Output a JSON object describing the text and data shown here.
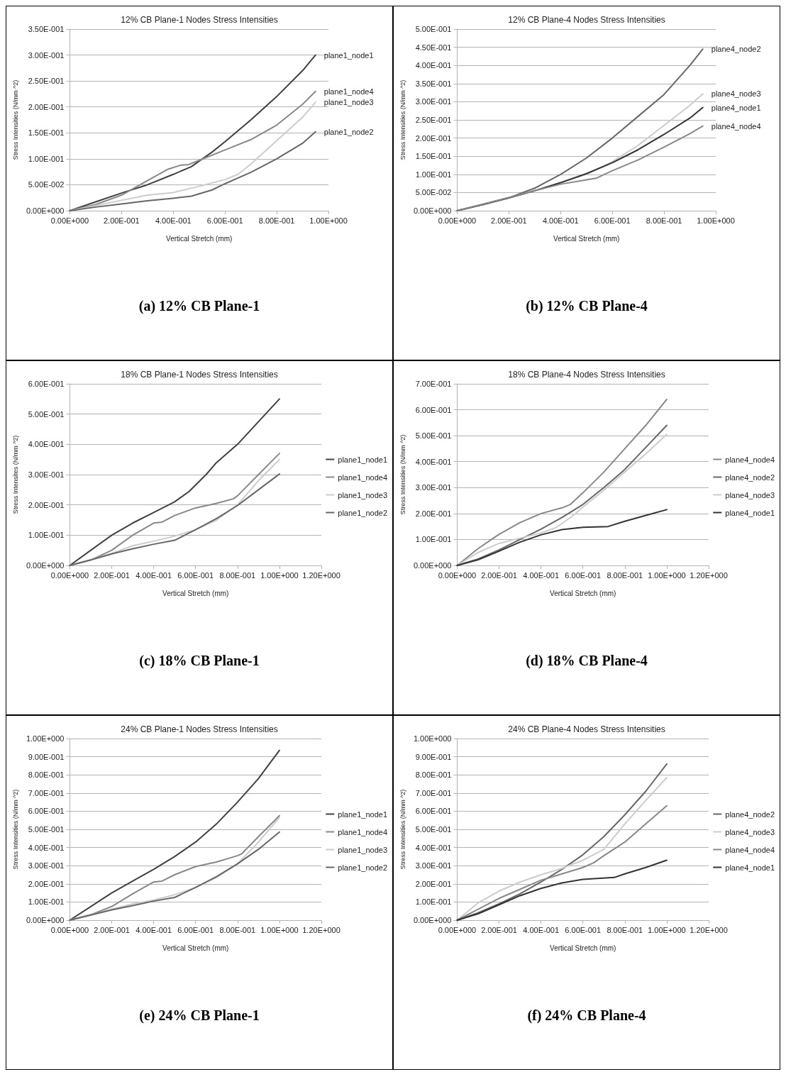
{
  "chart_data": [
    {
      "type": "line",
      "title": "12% CB Plane-1 Nodes Stress Intensities",
      "xlabel": "Vertical Stretch (mm)",
      "ylabel": "Stress Intensities (N/mm ^2)",
      "annotations": [
        "(a) 12% CB Plane-1"
      ],
      "legend": false,
      "grid": "y",
      "xlim": [
        0,
        1
      ],
      "xticks": [
        {
          "value": 0,
          "label": "0.00E+000"
        },
        {
          "value": 0.2,
          "label": "2.00E-001"
        },
        {
          "value": 0.4,
          "label": "4.00E-001"
        },
        {
          "value": 0.6,
          "label": "6.00E-001"
        },
        {
          "value": 0.8,
          "label": "8.00E-001"
        },
        {
          "value": 1,
          "label": "1.00E+000"
        }
      ],
      "ylim": [
        0,
        0.35
      ],
      "yticks": [
        {
          "value": 0,
          "label": "0.00E+000"
        },
        {
          "value": 0.05,
          "label": "5.00E-002"
        },
        {
          "value": 0.1,
          "label": "1.00E-001"
        },
        {
          "value": 0.15,
          "label": "1.50E-001"
        },
        {
          "value": 0.2,
          "label": "2.00E-001"
        },
        {
          "value": 0.25,
          "label": "2.50E-001"
        },
        {
          "value": 0.3,
          "label": "3.00E-001"
        },
        {
          "value": 0.35,
          "label": "3.50E-001"
        }
      ],
      "series": [
        {
          "name": "plane1_node1",
          "color": "#404040",
          "x": [
            0,
            0.1,
            0.2,
            0.3,
            0.4,
            0.47,
            0.55,
            0.6,
            0.7,
            0.8,
            0.9,
            0.95
          ],
          "values": [
            0,
            0.017,
            0.034,
            0.05,
            0.07,
            0.085,
            0.113,
            0.133,
            0.175,
            0.22,
            0.27,
            0.3
          ]
        },
        {
          "name": "plane1_node4",
          "color": "#888888",
          "x": [
            0,
            0.1,
            0.2,
            0.3,
            0.38,
            0.43,
            0.46,
            0.5,
            0.6,
            0.7,
            0.8,
            0.9,
            0.95
          ],
          "values": [
            0,
            0.012,
            0.03,
            0.058,
            0.08,
            0.088,
            0.089,
            0.097,
            0.117,
            0.137,
            0.165,
            0.205,
            0.23
          ]
        },
        {
          "name": "plane1_node3",
          "color": "#cccccc",
          "x": [
            0,
            0.1,
            0.2,
            0.3,
            0.4,
            0.5,
            0.6,
            0.65,
            0.7,
            0.8,
            0.9,
            0.95
          ],
          "values": [
            0,
            0.01,
            0.02,
            0.03,
            0.035,
            0.047,
            0.06,
            0.07,
            0.09,
            0.135,
            0.18,
            0.209
          ]
        },
        {
          "name": "plane1_node2",
          "color": "#666666",
          "x": [
            0,
            0.1,
            0.2,
            0.3,
            0.4,
            0.47,
            0.55,
            0.6,
            0.7,
            0.8,
            0.9,
            0.95
          ],
          "values": [
            0,
            0.007,
            0.013,
            0.019,
            0.024,
            0.028,
            0.04,
            0.052,
            0.074,
            0.1,
            0.13,
            0.152
          ]
        }
      ]
    },
    {
      "type": "line",
      "title": "12% CB Plane-4 Nodes Stress Intensities",
      "xlabel": "Vertical Stretch (mm)",
      "ylabel": "Stress Intensities (N/mm ^2)",
      "annotations": [
        "(b) 12% CB Plane-4"
      ],
      "legend": false,
      "grid": "y",
      "xlim": [
        0,
        1
      ],
      "xticks": [
        {
          "value": 0,
          "label": "0.00E+000"
        },
        {
          "value": 0.2,
          "label": "2.00E-001"
        },
        {
          "value": 0.4,
          "label": "4.00E-001"
        },
        {
          "value": 0.6,
          "label": "6.00E-001"
        },
        {
          "value": 0.8,
          "label": "8.00E-001"
        },
        {
          "value": 1,
          "label": "1.00E+000"
        }
      ],
      "ylim": [
        0,
        0.5
      ],
      "yticks": [
        {
          "value": 0,
          "label": "0.00E+000"
        },
        {
          "value": 0.05,
          "label": "5.00E-002"
        },
        {
          "value": 0.1,
          "label": "1.00E-001"
        },
        {
          "value": 0.15,
          "label": "1.50E-001"
        },
        {
          "value": 0.2,
          "label": "2.00E-001"
        },
        {
          "value": 0.25,
          "label": "2.50E-001"
        },
        {
          "value": 0.3,
          "label": "3.00E-001"
        },
        {
          "value": 0.35,
          "label": "3.50E-001"
        },
        {
          "value": 0.4,
          "label": "4.00E-001"
        },
        {
          "value": 0.45,
          "label": "4.50E-001"
        },
        {
          "value": 0.5,
          "label": "5.00E-001"
        }
      ],
      "series": [
        {
          "name": "plane4_node2",
          "color": "#666666",
          "x": [
            0,
            0.1,
            0.2,
            0.3,
            0.4,
            0.5,
            0.6,
            0.7,
            0.8,
            0.9,
            0.95
          ],
          "values": [
            0,
            0.017,
            0.036,
            0.062,
            0.1,
            0.145,
            0.2,
            0.26,
            0.32,
            0.4,
            0.445
          ]
        },
        {
          "name": "plane4_node3",
          "color": "#cccccc",
          "x": [
            0,
            0.1,
            0.2,
            0.3,
            0.4,
            0.5,
            0.6,
            0.7,
            0.8,
            0.9,
            0.95
          ],
          "values": [
            0,
            0.018,
            0.036,
            0.055,
            0.078,
            0.1,
            0.135,
            0.18,
            0.235,
            0.29,
            0.322
          ]
        },
        {
          "name": "plane4_node1",
          "color": "#333333",
          "x": [
            0,
            0.1,
            0.2,
            0.3,
            0.4,
            0.5,
            0.6,
            0.7,
            0.8,
            0.9,
            0.95
          ],
          "values": [
            0,
            0.017,
            0.035,
            0.055,
            0.077,
            0.102,
            0.132,
            0.168,
            0.21,
            0.255,
            0.284
          ]
        },
        {
          "name": "plane4_node4",
          "color": "#888888",
          "x": [
            0,
            0.1,
            0.2,
            0.3,
            0.4,
            0.5,
            0.54,
            0.6,
            0.7,
            0.8,
            0.9,
            0.95
          ],
          "values": [
            0,
            0.018,
            0.036,
            0.055,
            0.073,
            0.085,
            0.09,
            0.11,
            0.14,
            0.175,
            0.212,
            0.233
          ]
        }
      ]
    },
    {
      "type": "line",
      "title": "18% CB Plane-1 Nodes Stress Intensities",
      "xlabel": "Vertical Stretch (mm)",
      "ylabel": "Stress Intensites (N/mm ^2)",
      "annotations": [
        "(c) 18% CB Plane-1"
      ],
      "legend": "right",
      "grid": "y",
      "xlim": [
        0,
        1.2
      ],
      "xticks": [
        {
          "value": 0,
          "label": "0.00E+000"
        },
        {
          "value": 0.2,
          "label": "2.00E-001"
        },
        {
          "value": 0.4,
          "label": "4.00E-001"
        },
        {
          "value": 0.6,
          "label": "6.00E-001"
        },
        {
          "value": 0.8,
          "label": "8.00E-001"
        },
        {
          "value": 1,
          "label": "1.00E+000"
        },
        {
          "value": 1.2,
          "label": "1.20E+000"
        }
      ],
      "ylim": [
        0,
        0.6
      ],
      "yticks": [
        {
          "value": 0,
          "label": "0.00E+000"
        },
        {
          "value": 0.1,
          "label": "1.00E-001"
        },
        {
          "value": 0.2,
          "label": "2.00E-001"
        },
        {
          "value": 0.3,
          "label": "3.00E-001"
        },
        {
          "value": 0.4,
          "label": "4.00E-001"
        },
        {
          "value": 0.5,
          "label": "5.00E-001"
        },
        {
          "value": 0.6,
          "label": "6.00E-001"
        }
      ],
      "series": [
        {
          "name": "plane1_node1",
          "color": "#404040",
          "x": [
            0,
            0.1,
            0.2,
            0.3,
            0.4,
            0.5,
            0.57,
            0.65,
            0.7,
            0.8,
            0.9,
            1
          ],
          "values": [
            0,
            0.05,
            0.1,
            0.14,
            0.175,
            0.21,
            0.245,
            0.3,
            0.34,
            0.4,
            0.475,
            0.55
          ]
        },
        {
          "name": "plane1_node4",
          "color": "#888888",
          "x": [
            0,
            0.1,
            0.2,
            0.3,
            0.4,
            0.44,
            0.5,
            0.6,
            0.7,
            0.78,
            0.8,
            0.9,
            1
          ],
          "values": [
            0,
            0.018,
            0.05,
            0.1,
            0.14,
            0.143,
            0.165,
            0.19,
            0.205,
            0.22,
            0.23,
            0.3,
            0.37
          ]
        },
        {
          "name": "plane1_node3",
          "color": "#cccccc",
          "x": [
            0,
            0.1,
            0.2,
            0.3,
            0.4,
            0.5,
            0.6,
            0.7,
            0.8,
            0.9,
            1
          ],
          "values": [
            0,
            0.018,
            0.04,
            0.065,
            0.08,
            0.097,
            0.118,
            0.15,
            0.2,
            0.28,
            0.35
          ]
        },
        {
          "name": "plane1_node2",
          "color": "#666666",
          "x": [
            0,
            0.1,
            0.2,
            0.3,
            0.4,
            0.5,
            0.6,
            0.7,
            0.8,
            0.9,
            1
          ],
          "values": [
            0,
            0.018,
            0.038,
            0.055,
            0.07,
            0.083,
            0.118,
            0.155,
            0.198,
            0.25,
            0.302
          ]
        }
      ]
    },
    {
      "type": "line",
      "title": "18% CB Plane-4 Nodes Stress Intensities",
      "xlabel": "Vertical Stretch (mm)",
      "ylabel": "Stress Intensities (N/mm ^2)",
      "annotations": [
        "(d) 18% CB Plane-4"
      ],
      "legend": "right",
      "grid": "y",
      "xlim": [
        0,
        1.2
      ],
      "xticks": [
        {
          "value": 0,
          "label": "0.00E+000"
        },
        {
          "value": 0.2,
          "label": "2.00E-001"
        },
        {
          "value": 0.4,
          "label": "4.00E-001"
        },
        {
          "value": 0.6,
          "label": "6.00E-001"
        },
        {
          "value": 0.8,
          "label": "8.00E-001"
        },
        {
          "value": 1,
          "label": "1.00E+000"
        },
        {
          "value": 1.2,
          "label": "1.20E+000"
        }
      ],
      "ylim": [
        0,
        0.7
      ],
      "yticks": [
        {
          "value": 0,
          "label": "0.00E+000"
        },
        {
          "value": 0.1,
          "label": "1.00E-001"
        },
        {
          "value": 0.2,
          "label": "2.00E-001"
        },
        {
          "value": 0.3,
          "label": "3.00E-001"
        },
        {
          "value": 0.4,
          "label": "4.00E-001"
        },
        {
          "value": 0.5,
          "label": "5.00E-001"
        },
        {
          "value": 0.6,
          "label": "6.00E-001"
        },
        {
          "value": 0.7,
          "label": "7.00E-001"
        }
      ],
      "series": [
        {
          "name": "plane4_node4",
          "color": "#888888",
          "x": [
            0,
            0.1,
            0.2,
            0.3,
            0.4,
            0.5,
            0.54,
            0.6,
            0.7,
            0.8,
            0.9,
            1
          ],
          "values": [
            0,
            0.065,
            0.12,
            0.165,
            0.2,
            0.222,
            0.235,
            0.28,
            0.36,
            0.45,
            0.54,
            0.64
          ]
        },
        {
          "name": "plane4_node2",
          "color": "#666666",
          "x": [
            0,
            0.1,
            0.2,
            0.3,
            0.4,
            0.5,
            0.6,
            0.7,
            0.8,
            0.9,
            1
          ],
          "values": [
            0,
            0.025,
            0.06,
            0.1,
            0.14,
            0.185,
            0.235,
            0.3,
            0.37,
            0.455,
            0.54
          ]
        },
        {
          "name": "plane4_node3",
          "color": "#cccccc",
          "x": [
            0,
            0.1,
            0.2,
            0.3,
            0.4,
            0.47,
            0.55,
            0.6,
            0.7,
            0.8,
            0.9,
            1
          ],
          "values": [
            0,
            0.05,
            0.085,
            0.105,
            0.125,
            0.145,
            0.19,
            0.225,
            0.29,
            0.36,
            0.43,
            0.505
          ]
        },
        {
          "name": "plane4_node1",
          "color": "#333333",
          "x": [
            0,
            0.1,
            0.2,
            0.3,
            0.4,
            0.5,
            0.6,
            0.72,
            0.8,
            0.9,
            1
          ],
          "values": [
            0,
            0.022,
            0.055,
            0.09,
            0.118,
            0.138,
            0.147,
            0.15,
            0.17,
            0.193,
            0.215
          ]
        }
      ]
    },
    {
      "type": "line",
      "title": "24% CB Plane-1 Nodes Stress Intensities",
      "xlabel": "Vertical Stretch (mm)",
      "ylabel": "Stress Intensities (N/mm ^2)",
      "annotations": [
        "(e) 24% CB Plane-1"
      ],
      "legend": "right",
      "grid": "y",
      "xlim": [
        0,
        1.2
      ],
      "xticks": [
        {
          "value": 0,
          "label": "0.00E+000"
        },
        {
          "value": 0.2,
          "label": "2.00E-001"
        },
        {
          "value": 0.4,
          "label": "4.00E-001"
        },
        {
          "value": 0.6,
          "label": "6.00E-001"
        },
        {
          "value": 0.8,
          "label": "8.00E-001"
        },
        {
          "value": 1,
          "label": "1.00E+000"
        },
        {
          "value": 1.2,
          "label": "1.20E+000"
        }
      ],
      "ylim": [
        0,
        1
      ],
      "yticks": [
        {
          "value": 0,
          "label": "0.00E+000"
        },
        {
          "value": 0.1,
          "label": "1.00E-001"
        },
        {
          "value": 0.2,
          "label": "2.00E-001"
        },
        {
          "value": 0.3,
          "label": "3.00E-001"
        },
        {
          "value": 0.4,
          "label": "4.00E-001"
        },
        {
          "value": 0.5,
          "label": "5.00E-001"
        },
        {
          "value": 0.6,
          "label": "6.00E-001"
        },
        {
          "value": 0.7,
          "label": "7.00E-001"
        },
        {
          "value": 0.8,
          "label": "8.00E-001"
        },
        {
          "value": 0.9,
          "label": "9.00E-001"
        },
        {
          "value": 1,
          "label": "1.00E+000"
        }
      ],
      "series": [
        {
          "name": "plane1_node1",
          "color": "#404040",
          "x": [
            0,
            0.1,
            0.2,
            0.3,
            0.4,
            0.5,
            0.6,
            0.7,
            0.8,
            0.9,
            1
          ],
          "values": [
            0,
            0.075,
            0.15,
            0.215,
            0.28,
            0.35,
            0.43,
            0.53,
            0.65,
            0.78,
            0.935
          ]
        },
        {
          "name": "plane1_node4",
          "color": "#888888",
          "x": [
            0,
            0.1,
            0.2,
            0.3,
            0.4,
            0.44,
            0.5,
            0.6,
            0.7,
            0.8,
            0.82,
            0.9,
            1
          ],
          "values": [
            0,
            0.03,
            0.075,
            0.145,
            0.21,
            0.215,
            0.25,
            0.295,
            0.32,
            0.355,
            0.365,
            0.46,
            0.575
          ]
        },
        {
          "name": "plane1_node3",
          "color": "#cccccc",
          "x": [
            0,
            0.1,
            0.2,
            0.3,
            0.4,
            0.5,
            0.6,
            0.7,
            0.8,
            0.9,
            1
          ],
          "values": [
            0,
            0.028,
            0.06,
            0.09,
            0.11,
            0.14,
            0.18,
            0.235,
            0.31,
            0.43,
            0.565
          ]
        },
        {
          "name": "plane1_node2",
          "color": "#666666",
          "x": [
            0,
            0.1,
            0.2,
            0.3,
            0.4,
            0.5,
            0.6,
            0.7,
            0.8,
            0.9,
            1
          ],
          "values": [
            0,
            0.028,
            0.057,
            0.08,
            0.105,
            0.125,
            0.18,
            0.24,
            0.31,
            0.39,
            0.485
          ]
        }
      ]
    },
    {
      "type": "line",
      "title": "24% CB Plane-4 Nodes Stress Intensities",
      "xlabel": "Vertical Stretch (mm)",
      "ylabel": "Stress Intensities (N/mm ^2)",
      "annotations": [
        "(f) 24% CB Plane-4"
      ],
      "legend": "right",
      "grid": "y",
      "xlim": [
        0,
        1.2
      ],
      "xticks": [
        {
          "value": 0,
          "label": "0.00E+000"
        },
        {
          "value": 0.2,
          "label": "2.00E-001"
        },
        {
          "value": 0.4,
          "label": "4.00E-001"
        },
        {
          "value": 0.6,
          "label": "6.00E-001"
        },
        {
          "value": 0.8,
          "label": "8.00E-001"
        },
        {
          "value": 1,
          "label": "1.00E+000"
        },
        {
          "value": 1.2,
          "label": "1.20E+000"
        }
      ],
      "ylim": [
        0,
        1
      ],
      "yticks": [
        {
          "value": 0,
          "label": "0.00E+000"
        },
        {
          "value": 0.1,
          "label": "1.00E-001"
        },
        {
          "value": 0.2,
          "label": "2.00E-001"
        },
        {
          "value": 0.3,
          "label": "3.00E-001"
        },
        {
          "value": 0.4,
          "label": "4.00E-001"
        },
        {
          "value": 0.5,
          "label": "5.00E-001"
        },
        {
          "value": 0.6,
          "label": "6.00E-001"
        },
        {
          "value": 0.7,
          "label": "7.00E-001"
        },
        {
          "value": 0.8,
          "label": "8.00E-001"
        },
        {
          "value": 0.9,
          "label": "9.00E-001"
        },
        {
          "value": 1,
          "label": "1.00E+000"
        }
      ],
      "series": [
        {
          "name": "plane4_node2",
          "color": "#666666",
          "x": [
            0,
            0.1,
            0.2,
            0.3,
            0.4,
            0.5,
            0.6,
            0.7,
            0.8,
            0.9,
            1
          ],
          "values": [
            0,
            0.04,
            0.09,
            0.145,
            0.21,
            0.28,
            0.36,
            0.46,
            0.58,
            0.71,
            0.86
          ]
        },
        {
          "name": "plane4_node3",
          "color": "#cccccc",
          "x": [
            0,
            0.1,
            0.2,
            0.3,
            0.4,
            0.5,
            0.6,
            0.7,
            0.8,
            0.9,
            1
          ],
          "values": [
            0,
            0.095,
            0.16,
            0.21,
            0.25,
            0.285,
            0.33,
            0.39,
            0.53,
            0.66,
            0.785
          ]
        },
        {
          "name": "plane4_node4",
          "color": "#888888",
          "x": [
            0,
            0.1,
            0.2,
            0.3,
            0.4,
            0.5,
            0.6,
            0.65,
            0.7,
            0.8,
            0.9,
            1
          ],
          "values": [
            0,
            0.06,
            0.12,
            0.17,
            0.22,
            0.255,
            0.29,
            0.315,
            0.355,
            0.43,
            0.53,
            0.63
          ]
        },
        {
          "name": "plane4_node1",
          "color": "#333333",
          "x": [
            0,
            0.1,
            0.2,
            0.3,
            0.4,
            0.5,
            0.6,
            0.75,
            0.8,
            0.9,
            1
          ],
          "values": [
            0,
            0.035,
            0.085,
            0.135,
            0.175,
            0.205,
            0.225,
            0.235,
            0.255,
            0.29,
            0.33
          ]
        }
      ]
    }
  ]
}
